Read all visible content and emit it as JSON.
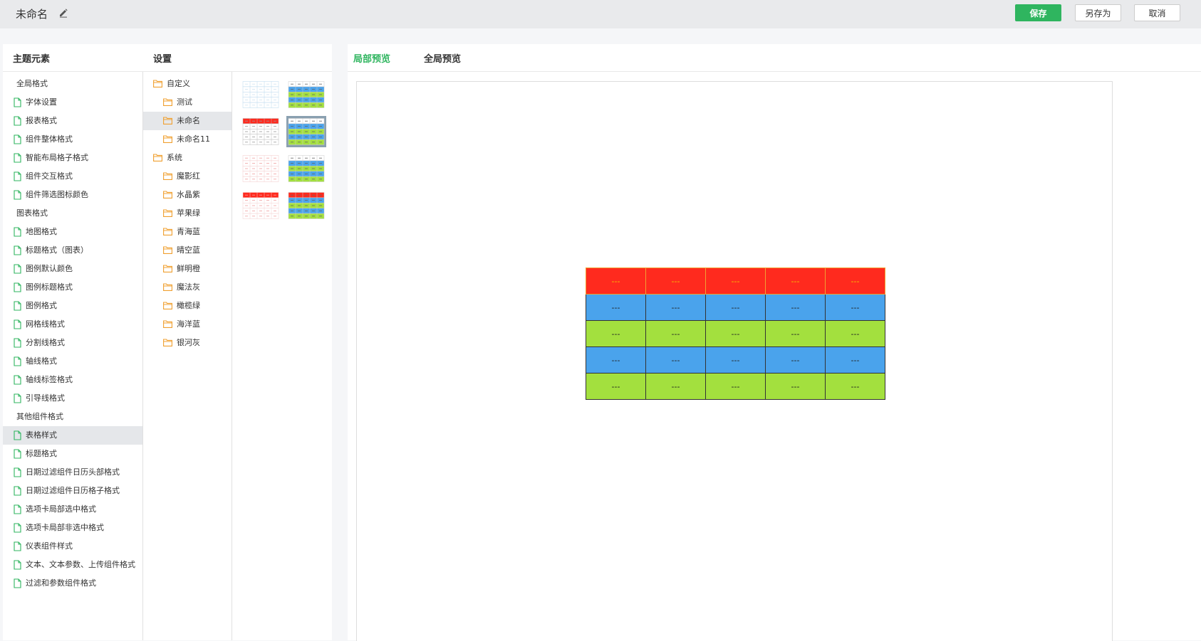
{
  "header": {
    "title": "未命名",
    "save_label": "保存",
    "save_as_label": "另存为",
    "cancel_label": "取消"
  },
  "colors": {
    "accent": "#2fb55f",
    "red": "#ff2a1e",
    "blue": "#4aa3ec",
    "green": "#a3e03e",
    "header_text": "#f5c400"
  },
  "left_panel": {
    "elements_title": "主题元素",
    "settings_title": "设置",
    "elements": [
      {
        "label": "全局格式",
        "type": "category"
      },
      {
        "label": "字体设置",
        "type": "item"
      },
      {
        "label": "报表格式",
        "type": "item"
      },
      {
        "label": "组件整体格式",
        "type": "item"
      },
      {
        "label": "智能布局格子格式",
        "type": "item"
      },
      {
        "label": "组件交互格式",
        "type": "item"
      },
      {
        "label": "组件筛选图标颜色",
        "type": "item"
      },
      {
        "label": "图表格式",
        "type": "category"
      },
      {
        "label": "地图格式",
        "type": "item"
      },
      {
        "label": "标题格式（图表）",
        "type": "item"
      },
      {
        "label": "图例默认颜色",
        "type": "item"
      },
      {
        "label": "图例标题格式",
        "type": "item"
      },
      {
        "label": "图例格式",
        "type": "item"
      },
      {
        "label": "网格线格式",
        "type": "item"
      },
      {
        "label": "分割线格式",
        "type": "item"
      },
      {
        "label": "轴线格式",
        "type": "item"
      },
      {
        "label": "轴线标签格式",
        "type": "item"
      },
      {
        "label": "引导线格式",
        "type": "item"
      },
      {
        "label": "其他组件格式",
        "type": "category"
      },
      {
        "label": "表格样式",
        "type": "item",
        "selected": true
      },
      {
        "label": "标题格式",
        "type": "item"
      },
      {
        "label": "日期过滤组件日历头部格式",
        "type": "item"
      },
      {
        "label": "日期过滤组件日历格子格式",
        "type": "item"
      },
      {
        "label": "选项卡局部选中格式",
        "type": "item"
      },
      {
        "label": "选项卡局部非选中格式",
        "type": "item"
      },
      {
        "label": "仪表组件样式",
        "type": "item"
      },
      {
        "label": "文本、文本参数、上传组件格式",
        "type": "item"
      },
      {
        "label": "过滤和参数组件格式",
        "type": "item"
      }
    ],
    "settings": [
      {
        "label": "自定义",
        "level": 0
      },
      {
        "label": "测试",
        "level": 1
      },
      {
        "label": "未命名",
        "level": 1,
        "selected": true
      },
      {
        "label": "未命名11",
        "level": 1
      },
      {
        "label": "系统",
        "level": 0
      },
      {
        "label": "魔影红",
        "level": 1
      },
      {
        "label": "水晶紫",
        "level": 1
      },
      {
        "label": "苹果绿",
        "level": 1
      },
      {
        "label": "青海蓝",
        "level": 1
      },
      {
        "label": "晴空蓝",
        "level": 1
      },
      {
        "label": "鲜明橙",
        "level": 1
      },
      {
        "label": "魔法灰",
        "level": 1
      },
      {
        "label": "橄榄绿",
        "level": 1
      },
      {
        "label": "海洋蓝",
        "level": 1
      },
      {
        "label": "银河灰",
        "level": 1
      }
    ],
    "thumbnails": [
      {
        "style": "plain-light-blue"
      },
      {
        "style": "blue-green-striped"
      },
      {
        "style": "red-header-grid"
      },
      {
        "style": "blue-green-striped",
        "selected": true
      },
      {
        "style": "plain-light-red"
      },
      {
        "style": "blue-green-striped"
      },
      {
        "style": "red-header-light"
      },
      {
        "style": "red-blue-green"
      }
    ]
  },
  "right_panel": {
    "tab_local": "局部预览",
    "tab_global": "全局预览",
    "preview_table": {
      "columns": 5,
      "rows": [
        {
          "style": "header",
          "cells": [
            "---",
            "---",
            "---",
            "---",
            "---"
          ]
        },
        {
          "style": "blue",
          "cells": [
            "---",
            "---",
            "---",
            "---",
            "---"
          ]
        },
        {
          "style": "green",
          "cells": [
            "---",
            "---",
            "---",
            "---",
            "---"
          ]
        },
        {
          "style": "blue",
          "cells": [
            "---",
            "---",
            "---",
            "---",
            "---"
          ]
        },
        {
          "style": "green",
          "cells": [
            "---",
            "---",
            "---",
            "---",
            "---"
          ]
        }
      ]
    }
  }
}
